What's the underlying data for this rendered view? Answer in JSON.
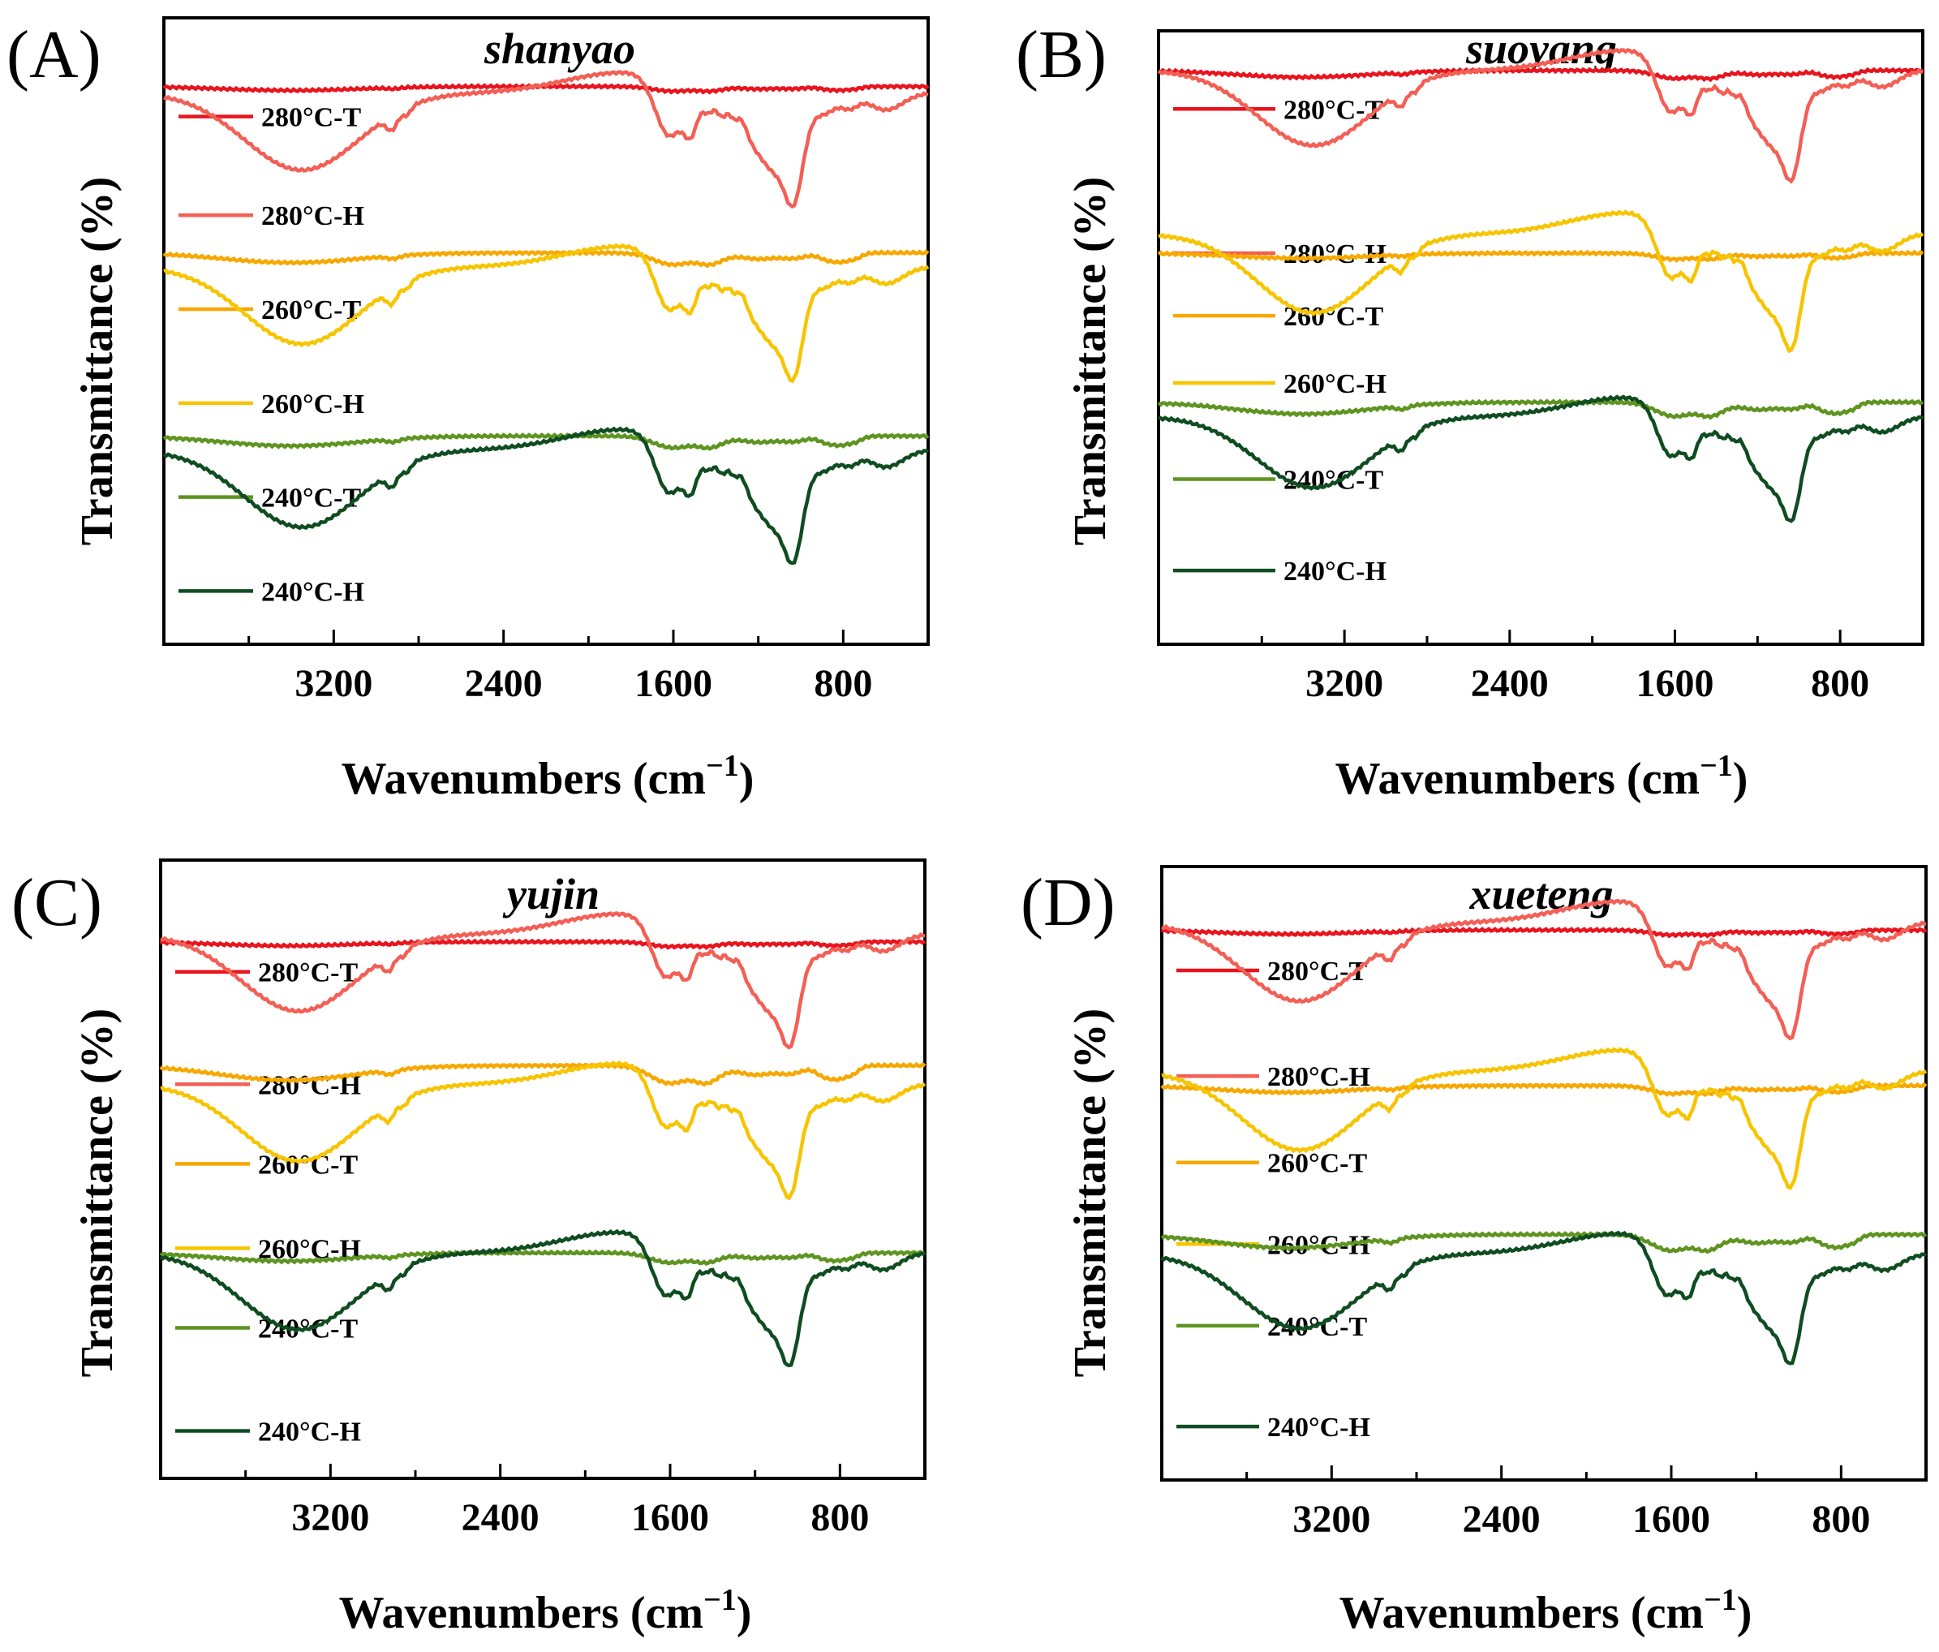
{
  "figure": {
    "y_axis_label": "Transmittance (%)",
    "x_axis_label_main": "Wavenumbers (cm",
    "x_axis_label_sup": "−1",
    "x_axis_label_close": ")"
  },
  "colors": {
    "280°C-T": "#e8141e",
    "280°C-H": "#f35f55",
    "260°C-T": "#f7a800",
    "260°C-H": "#f7c400",
    "240°C-T": "#5e9420",
    "240°C-H": "#0f4d21"
  },
  "chart_data": [
    {
      "type": "line",
      "panel_label": "(A)",
      "title": "shanyao",
      "xlabel": "Wavenumbers (cm−1)",
      "ylabel": "Transmittance (%)",
      "xlim": [
        4000,
        400
      ],
      "x_ticks": [
        3200,
        2400,
        1600,
        800
      ],
      "y_ticks_shown": false,
      "series": [
        {
          "name": "280°C-T",
          "offset": 5.0,
          "amplitude": 0.12,
          "label_level": 4.8
        },
        {
          "name": "280°C-H",
          "offset": 4.05,
          "amplitude": 1.0,
          "label_level": 3.75
        },
        {
          "name": "260°C-T",
          "offset": 3.05,
          "amplitude": 0.3,
          "label_level": 2.75
        },
        {
          "name": "260°C-H",
          "offset": 2.2,
          "amplitude": 1.0,
          "label_level": 1.75
        },
        {
          "name": "240°C-T",
          "offset": 1.1,
          "amplitude": 0.3,
          "label_level": 0.75
        },
        {
          "name": "240°C-H",
          "offset": 0.25,
          "amplitude": 1.0,
          "label_level": -0.25
        }
      ]
    },
    {
      "type": "line",
      "panel_label": "(B)",
      "title": "suoyang",
      "xlabel": "Wavenumbers (cm−1)",
      "ylabel": "Transmittance (%)",
      "xlim": [
        4100,
        400
      ],
      "x_ticks": [
        3200,
        2400,
        1600,
        800
      ],
      "y_ticks_shown": false,
      "series": [
        {
          "name": "280°C-T",
          "offset": 5.0,
          "amplitude": 0.2,
          "label_level": 4.8
        },
        {
          "name": "280°C-H",
          "offset": 4.25,
          "amplitude": 0.95,
          "label_level": 3.3
        },
        {
          "name": "260°C-T",
          "offset": 3.15,
          "amplitude": 0.15,
          "label_level": 2.65
        },
        {
          "name": "260°C-H",
          "offset": 2.5,
          "amplitude": 1.0,
          "label_level": 1.95
        },
        {
          "name": "240°C-T",
          "offset": 1.4,
          "amplitude": 0.35,
          "label_level": 0.95
        },
        {
          "name": "240°C-H",
          "offset": 0.7,
          "amplitude": 0.9,
          "label_level": 0.0
        }
      ]
    },
    {
      "type": "line",
      "panel_label": "(C)",
      "title": "yujin",
      "xlabel": "Wavenumbers (cm−1)",
      "ylabel": "Transmittance (%)",
      "xlim": [
        4000,
        400
      ],
      "x_ticks": [
        3200,
        2400,
        1600,
        800
      ],
      "y_ticks_shown": false,
      "series": [
        {
          "name": "280°C-T",
          "offset": 5.0,
          "amplitude": 0.12,
          "label_level": 4.8
        },
        {
          "name": "280°C-H",
          "offset": 4.2,
          "amplitude": 1.0,
          "label_level": 3.6
        },
        {
          "name": "260°C-T",
          "offset": 3.35,
          "amplitude": 0.45,
          "label_level": 2.75
        },
        {
          "name": "260°C-H",
          "offset": 2.6,
          "amplitude": 1.0,
          "label_level": 1.85
        },
        {
          "name": "240°C-T",
          "offset": 1.55,
          "amplitude": 0.25,
          "label_level": 1.0
        },
        {
          "name": "240°C-H",
          "offset": 0.8,
          "amplitude": 1.0,
          "label_level": -0.1
        }
      ]
    },
    {
      "type": "line",
      "panel_label": "(D)",
      "title": "xueteng",
      "xlabel": "Wavenumbers (cm−1)",
      "ylabel": "Transmittance (%)",
      "xlim": [
        4000,
        400
      ],
      "x_ticks": [
        3200,
        2400,
        1600,
        800
      ],
      "y_ticks_shown": false,
      "series": [
        {
          "name": "280°C-T",
          "offset": 5.0,
          "amplitude": 0.12,
          "label_level": 4.7
        },
        {
          "name": "280°C-H",
          "offset": 4.2,
          "amplitude": 1.0,
          "label_level": 3.6
        },
        {
          "name": "260°C-T",
          "offset": 3.3,
          "amplitude": 0.2,
          "label_level": 2.7
        },
        {
          "name": "260°C-H",
          "offset": 2.65,
          "amplitude": 1.0,
          "label_level": 1.85
        },
        {
          "name": "240°C-T",
          "offset": 1.55,
          "amplitude": 0.4,
          "label_level": 1.0
        },
        {
          "name": "240°C-H",
          "offset": 0.8,
          "amplitude": 0.95,
          "label_level": -0.05
        }
      ]
    }
  ]
}
